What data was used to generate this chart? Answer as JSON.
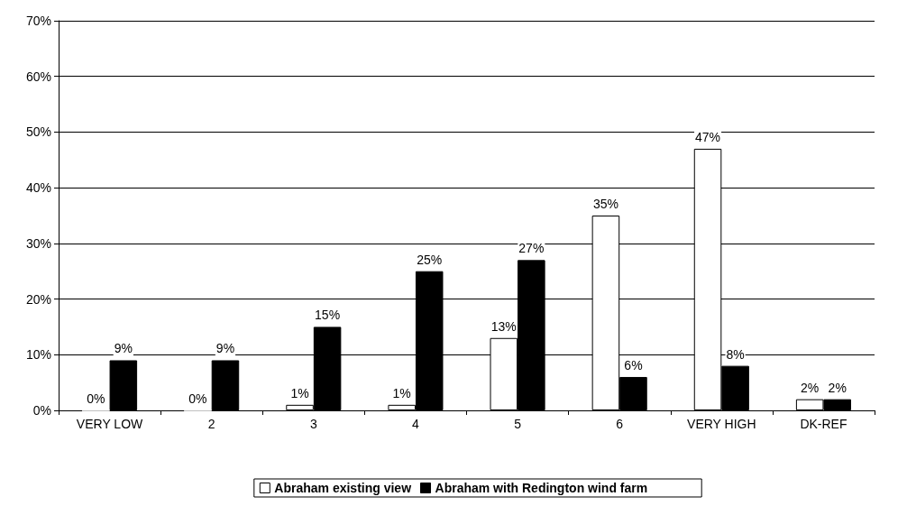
{
  "chart_data": {
    "type": "bar",
    "categories": [
      "VERY LOW",
      "2",
      "3",
      "4",
      "5",
      "6",
      "VERY HIGH",
      "DK-REF"
    ],
    "series": [
      {
        "name": "Abraham existing view",
        "color": "#ffffff",
        "values": [
          0,
          0,
          1,
          1,
          13,
          35,
          47,
          2
        ],
        "value_labels": [
          "0%",
          "0%",
          "1%",
          "1%",
          "13%",
          "35%",
          "47%",
          "2%"
        ]
      },
      {
        "name": "Abraham with Redington wind farm",
        "color": "#000000",
        "values": [
          9,
          9,
          15,
          25,
          27,
          6,
          8,
          2
        ],
        "value_labels": [
          "9%",
          "9%",
          "15%",
          "25%",
          "27%",
          "6%",
          "8%",
          "2%"
        ]
      }
    ],
    "ylim": [
      0,
      70
    ],
    "yticks": [
      {
        "value": 0,
        "label": "0%"
      },
      {
        "value": 10,
        "label": "10%"
      },
      {
        "value": 20,
        "label": "20%"
      },
      {
        "value": 30,
        "label": "30%"
      },
      {
        "value": 40,
        "label": "40%"
      },
      {
        "value": 50,
        "label": "50%"
      },
      {
        "value": 60,
        "label": "60%"
      },
      {
        "value": 70,
        "label": "70%"
      }
    ],
    "grid": "y",
    "legend": "bottom"
  }
}
